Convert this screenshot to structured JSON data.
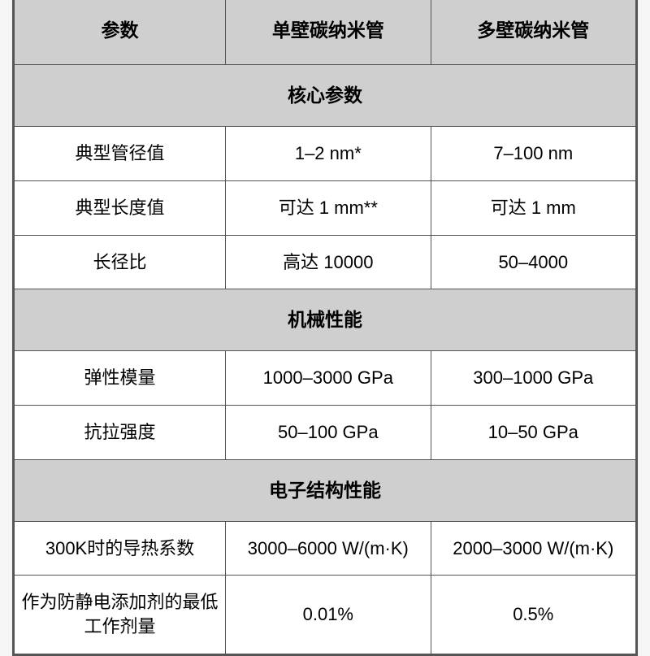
{
  "columns": [
    "参数",
    "单壁碳纳米管",
    "多壁碳纳米管"
  ],
  "sections": [
    {
      "title": "核心参数",
      "rows": [
        {
          "label": "典型管径值",
          "v1": "1–2 nm*",
          "v2": "7–100 nm"
        },
        {
          "label": "典型长度值",
          "v1": "可达 1 mm**",
          "v2": "可达 1 mm"
        },
        {
          "label": "长径比",
          "v1": "高达 10000",
          "v2": "50–4000"
        }
      ]
    },
    {
      "title": "机械性能",
      "rows": [
        {
          "label": "弹性模量",
          "v1": "1000–3000 GPa",
          "v2": "300–1000 GPa"
        },
        {
          "label": "抗拉强度",
          "v1": "50–100 GPa",
          "v2": "10–50 GPa"
        }
      ]
    },
    {
      "title": "电子结构性能",
      "rows": [
        {
          "label": "300K时的导热系数",
          "v1": "3000–6000 W/(m·K)",
          "v2": "2000–3000 W/(m·K)"
        },
        {
          "label": "作为防静电添加剂的最低工作剂量",
          "v1": "0.01%",
          "v2": "0.5%"
        }
      ]
    }
  ],
  "style": {
    "header_bg": "#cfcfcf",
    "cell_bg": "#ffffff",
    "border_color": "#555555",
    "font_size_header": 23,
    "font_size_cell": 22,
    "font_weight_header": 700
  }
}
